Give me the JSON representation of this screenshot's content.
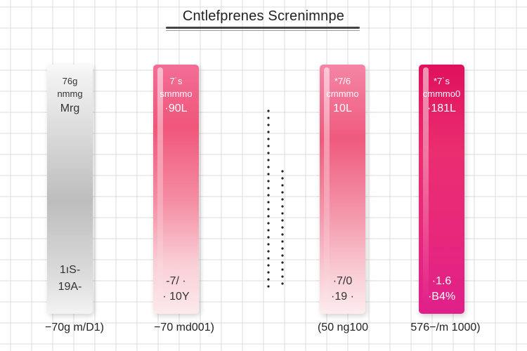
{
  "chart_data": {
    "type": "bar",
    "title": "Cntlefprenes Screnimnpe",
    "colors": {
      "grey": "#c4c4c4",
      "pink_light": "#f47a95",
      "pink_mid": "#ef5a82",
      "magenta": "#dd1e6a"
    },
    "grid": true,
    "categories": [
      "−70g m/D1)",
      "−70 md001)",
      "(50 ng100",
      "576−/m 1000)"
    ],
    "bars": [
      {
        "category": "−70g m/D1)",
        "top_labels": [
          "76g",
          "nmmg",
          "Mrg"
        ],
        "bottom_labels": [
          "1ıS-",
          "19A-"
        ],
        "color": "grey"
      },
      {
        "category": "−70 md001)",
        "top_labels": [
          "7˙s",
          "smmmo",
          "·90L"
        ],
        "bottom_labels": [
          "-7/ ·",
          "· 10Y"
        ],
        "color": "pink_light"
      },
      {
        "category": "(50 ng100",
        "top_labels": [
          "*7/6",
          "cmmmo",
          "10L"
        ],
        "bottom_labels": [
          "·7/0",
          "·19 ·"
        ],
        "color": "pink_mid"
      },
      {
        "category": "576−/m 1000)",
        "top_labels": [
          "*7˙s",
          "cmmmo0",
          "·181L"
        ],
        "bottom_labels": [
          "·1.6",
          "·B4%"
        ],
        "color": "magenta"
      }
    ]
  }
}
